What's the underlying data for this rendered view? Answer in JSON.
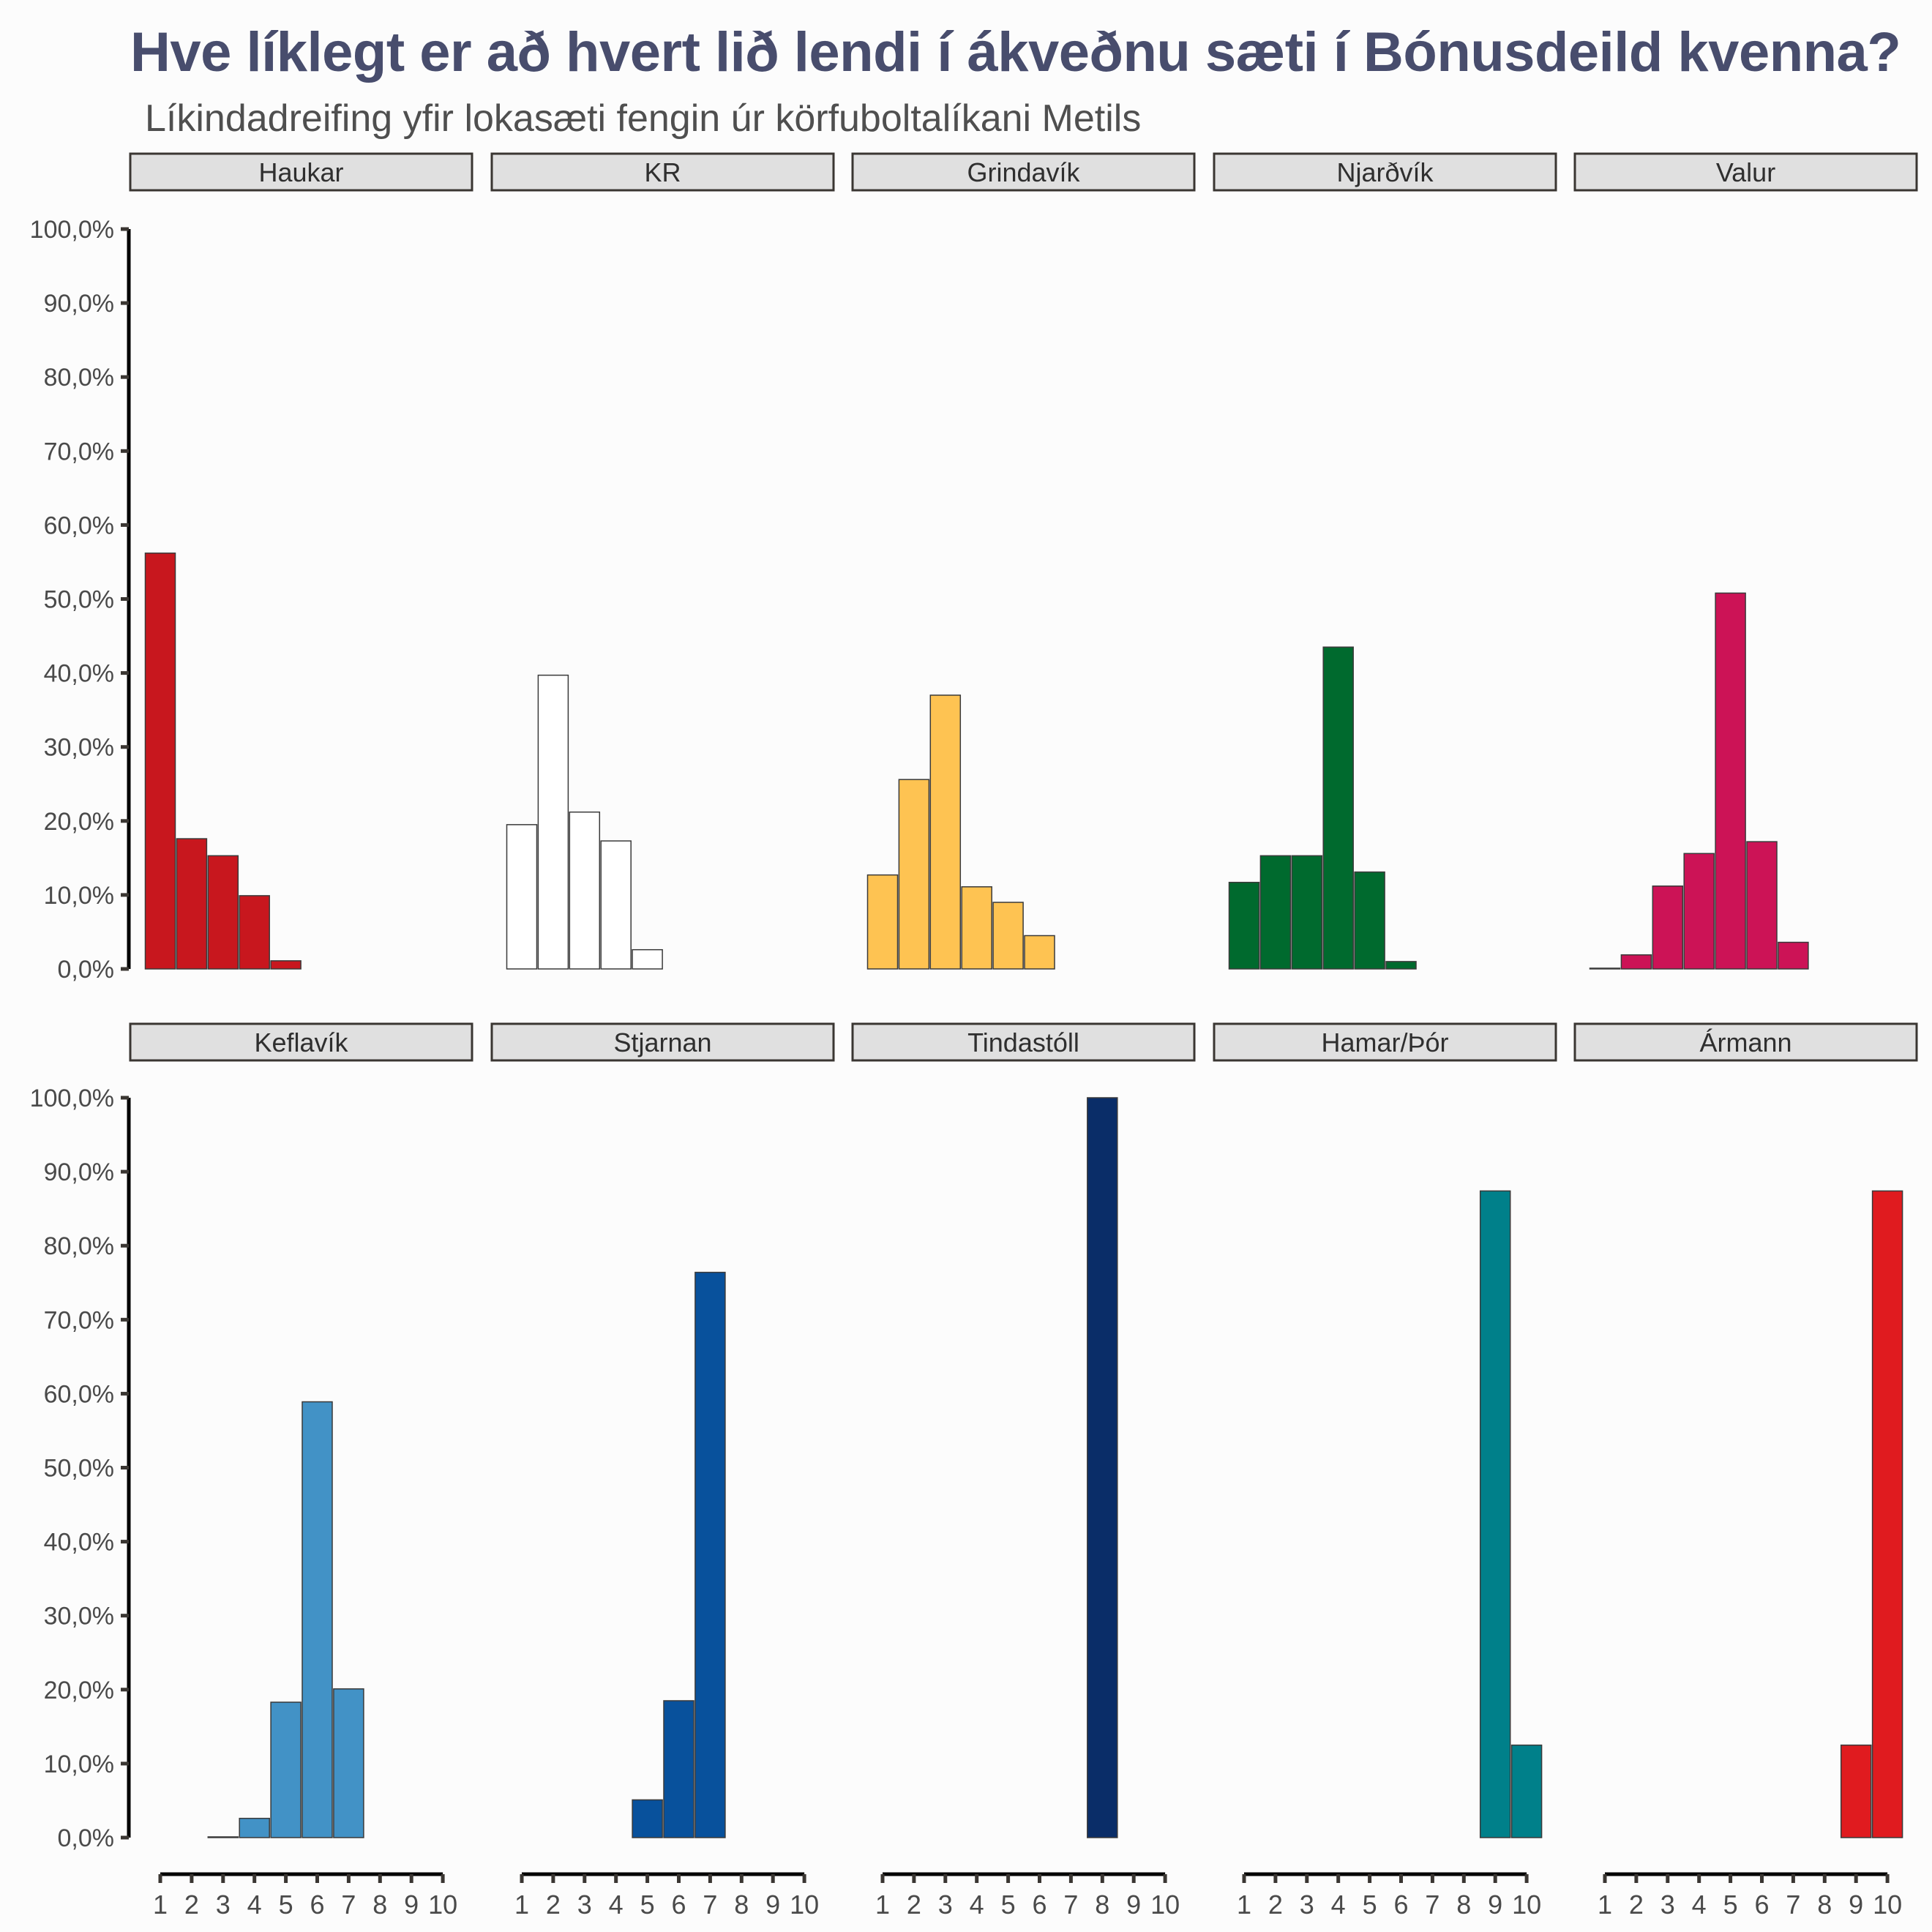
{
  "title": "Hve líklegt er að hvert lið lendi í ákveðnu sæti í Bónusdeild kvenna?",
  "subtitle": "Líkindadreifing yfir lokasæti fengin úr körfuboltalíkani Metils",
  "chart_data": {
    "type": "bar",
    "title": "Hve líklegt er að hvert lið lendi í ákveðnu sæti í Bónusdeild kvenna?",
    "subtitle": "Líkindadreifing yfir lokasæti fengin úr körfuboltalíkani Metils",
    "xlabel": "",
    "ylabel": "",
    "x_ticks": [
      "1",
      "2",
      "3",
      "4",
      "5",
      "6",
      "7",
      "8",
      "9",
      "10"
    ],
    "y_ticks": [
      "0,0%",
      "10,0%",
      "20,0%",
      "30,0%",
      "40,0%",
      "50,0%",
      "60,0%",
      "70,0%",
      "80,0%",
      "90,0%",
      "100,0%"
    ],
    "ylim": [
      0,
      100
    ],
    "xlim": [
      1,
      10
    ],
    "grid": false,
    "legend": "none",
    "facets": [
      {
        "team": "Haukar",
        "color": "#c8171e",
        "values": {
          "1": 56.2,
          "2": 17.6,
          "3": 15.3,
          "4": 9.9,
          "5": 1.1
        }
      },
      {
        "team": "KR",
        "color": "#ffffff",
        "values": {
          "1": 19.5,
          "2": 39.7,
          "3": 21.2,
          "4": 17.3,
          "5": 2.6
        }
      },
      {
        "team": "Grindavík",
        "color": "#fec352",
        "values": {
          "1": 12.7,
          "2": 25.6,
          "3": 37.0,
          "4": 11.1,
          "5": 9.0,
          "6": 4.5
        }
      },
      {
        "team": "Njarðvík",
        "color": "#006a2e",
        "values": {
          "1": 11.7,
          "2": 15.3,
          "3": 15.3,
          "4": 43.5,
          "5": 13.1,
          "6": 1.0
        }
      },
      {
        "team": "Valur",
        "color": "#cc1356",
        "values": {
          "1": 0.1,
          "2": 1.9,
          "3": 11.2,
          "4": 15.6,
          "5": 50.8,
          "6": 17.2,
          "7": 3.6
        }
      },
      {
        "team": "Keflavík",
        "color": "#4292c6",
        "values": {
          "3": 0.1,
          "4": 2.6,
          "5": 18.3,
          "6": 58.9,
          "7": 20.1
        }
      },
      {
        "team": "Stjarnan",
        "color": "#08519c",
        "values": {
          "5": 5.1,
          "6": 18.5,
          "7": 76.4
        }
      },
      {
        "team": "Tindastóll",
        "color": "#0a2d68",
        "values": {
          "8": 100.0
        }
      },
      {
        "team": "Hamar/Þór",
        "color": "#00808a",
        "values": {
          "9": 87.4,
          "10": 12.5
        }
      },
      {
        "team": "Ármann",
        "color": "#e01b1f",
        "values": {
          "9": 12.5,
          "10": 87.4
        }
      }
    ]
  }
}
